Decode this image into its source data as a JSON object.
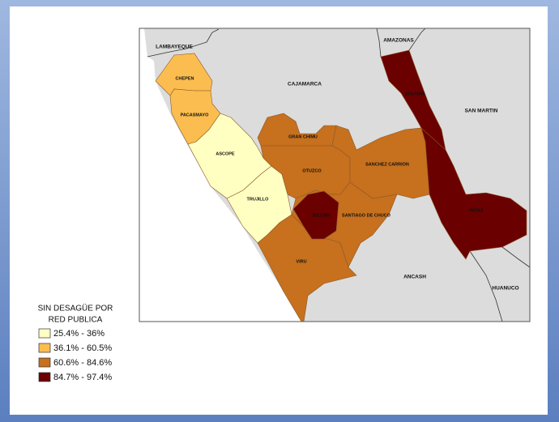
{
  "map": {
    "legend": {
      "title_lines": [
        "SIN DESAGÜE POR",
        "RED PUBLICA"
      ],
      "items": [
        {
          "label": "25.4% - 36%",
          "color": "#ffffc2"
        },
        {
          "label": "36.1% - 60.5%",
          "color": "#fbbd4f"
        },
        {
          "label": "60.6% - 84.6%",
          "color": "#c7701d"
        },
        {
          "label": "84.7% - 97.4%",
          "color": "#6b0000"
        }
      ]
    },
    "regions": [
      {
        "name": "CHEPEN",
        "color": "#fbbd4f"
      },
      {
        "name": "PACASMAYO",
        "color": "#fbbd4f"
      },
      {
        "name": "ASCOPE",
        "color": "#ffffc2"
      },
      {
        "name": "TRUJILLO",
        "color": "#ffffc2"
      },
      {
        "name": "GRAN CHIMU",
        "color": "#c7701d"
      },
      {
        "name": "OTUZCO",
        "color": "#c7701d"
      },
      {
        "name": "SANCHEZ CARRION",
        "color": "#c7701d"
      },
      {
        "name": "SANTIAGO DE CHUCO",
        "color": "#c7701d"
      },
      {
        "name": "VIRU",
        "color": "#c7701d"
      },
      {
        "name": "JULCAN",
        "color": "#6b0000"
      },
      {
        "name": "BOLIVAR",
        "color": "#6b0000"
      },
      {
        "name": "PATAZ",
        "color": "#6b0000"
      }
    ],
    "neighbors": [
      "LAMBAYEQUE",
      "CAJAMARCA",
      "AMAZONAS",
      "SAN MARTIN",
      "ANCASH",
      "HUANUCO"
    ]
  }
}
